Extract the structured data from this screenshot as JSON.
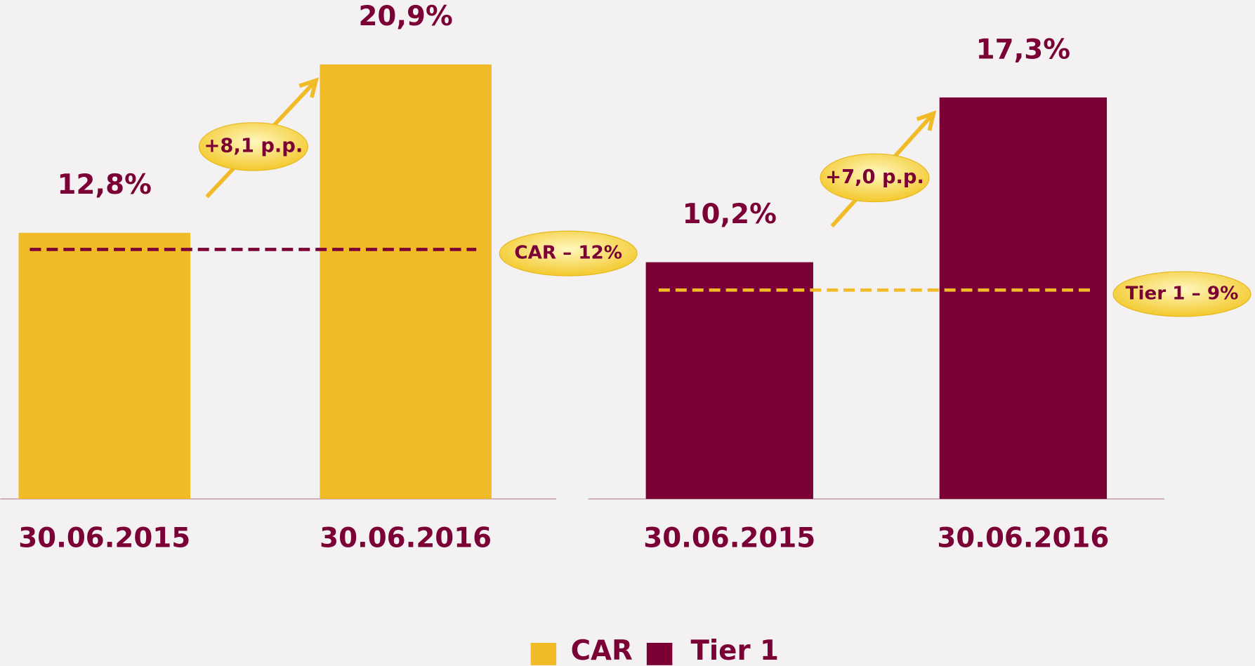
{
  "chart_data": [
    {
      "type": "bar",
      "categories": [
        "30.06.2015",
        "30.06.2016"
      ],
      "series": [
        {
          "name": "CAR",
          "color": "#f0bb27",
          "values": [
            12.8,
            20.9
          ],
          "value_labels": [
            "12,8%",
            "20,9%"
          ]
        }
      ],
      "ylim": [
        0,
        24
      ],
      "annotation": "+8,1 p.p.",
      "reference": {
        "value": 12,
        "label": "CAR – 12%",
        "color": "#7a0035"
      }
    },
    {
      "type": "bar",
      "categories": [
        "30.06.2015",
        "30.06.2016"
      ],
      "series": [
        {
          "name": "Tier 1",
          "color": "#7a0035",
          "values": [
            10.2,
            17.3
          ],
          "value_labels": [
            "10,2%",
            "17,3%"
          ]
        }
      ],
      "ylim": [
        0,
        21.5
      ],
      "annotation": "+7,0 p.p.",
      "reference": {
        "value": 9,
        "label": "Tier 1 – 9%",
        "color": "#f0bb27"
      }
    }
  ]
}
